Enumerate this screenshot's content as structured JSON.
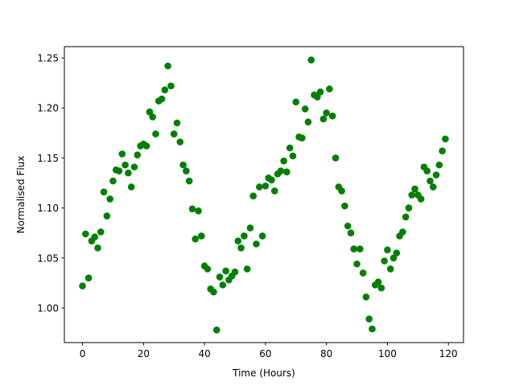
{
  "chart_data": {
    "type": "scatter",
    "xlabel": "Time (Hours)",
    "ylabel": "Normalised Flux",
    "color": "#008000",
    "x": [
      0,
      1,
      2,
      3,
      4,
      5,
      6,
      7,
      8,
      9,
      10,
      11,
      12,
      13,
      14,
      15,
      16,
      17,
      18,
      19,
      20,
      21,
      22,
      23,
      24,
      25,
      26,
      27,
      28,
      29,
      30,
      31,
      32,
      33,
      34,
      35,
      36,
      37,
      38,
      39,
      40,
      41,
      42,
      43,
      44,
      45,
      46,
      47,
      48,
      49,
      50,
      51,
      52,
      53,
      54,
      55,
      56,
      57,
      58,
      59,
      60,
      61,
      62,
      63,
      64,
      65,
      66,
      67,
      68,
      69,
      70,
      71,
      72,
      73,
      74,
      75,
      76,
      77,
      78,
      79,
      80,
      81,
      82,
      83,
      84,
      85,
      86,
      87,
      88,
      89,
      90,
      91,
      92,
      93,
      94,
      95,
      96,
      97,
      98,
      99,
      100,
      101,
      102,
      103,
      104,
      105,
      106,
      107,
      108,
      109,
      110,
      111,
      112,
      113,
      114,
      115,
      116,
      117,
      118,
      119
    ],
    "values": [
      1.022,
      1.074,
      1.03,
      1.067,
      1.071,
      1.06,
      1.076,
      1.116,
      1.092,
      1.109,
      1.127,
      1.138,
      1.137,
      1.154,
      1.143,
      1.135,
      1.121,
      1.141,
      1.153,
      1.162,
      1.164,
      1.162,
      1.196,
      1.191,
      1.174,
      1.207,
      1.209,
      1.218,
      1.242,
      1.222,
      1.174,
      1.185,
      1.166,
      1.143,
      1.137,
      1.127,
      1.099,
      1.069,
      1.097,
      1.072,
      1.042,
      1.039,
      1.019,
      1.016,
      0.978,
      1.031,
      1.023,
      1.037,
      1.028,
      1.032,
      1.036,
      1.067,
      1.06,
      1.072,
      1.039,
      1.08,
      1.112,
      1.064,
      1.121,
      1.072,
      1.122,
      1.13,
      1.128,
      1.117,
      1.134,
      1.137,
      1.147,
      1.136,
      1.16,
      1.152,
      1.206,
      1.171,
      1.17,
      1.199,
      1.186,
      1.248,
      1.213,
      1.211,
      1.216,
      1.189,
      1.195,
      1.219,
      1.192,
      1.15,
      1.121,
      1.117,
      1.102,
      1.082,
      1.075,
      1.059,
      1.044,
      1.059,
      1.035,
      1.011,
      0.989,
      0.979,
      1.023,
      1.026,
      1.02,
      1.047,
      1.058,
      1.039,
      1.05,
      1.055,
      1.072,
      1.076,
      1.091,
      1.1,
      1.113,
      1.119,
      1.113,
      1.109,
      1.141,
      1.137,
      1.127,
      1.121,
      1.133,
      1.143,
      1.157,
      1.169
    ],
    "xlim": [
      -5.95,
      124.95
    ],
    "ylim": [
      0.9654,
      1.2613
    ],
    "xticks": [
      0,
      20,
      40,
      60,
      80,
      100,
      120
    ],
    "yticks": [
      {
        "value": 1.0,
        "label": "1.00"
      },
      {
        "value": 1.05,
        "label": "1.05"
      },
      {
        "value": 1.1,
        "label": "1.10"
      },
      {
        "value": 1.15,
        "label": "1.15"
      },
      {
        "value": 1.2,
        "label": "1.20"
      },
      {
        "value": 1.25,
        "label": "1.25"
      }
    ]
  }
}
